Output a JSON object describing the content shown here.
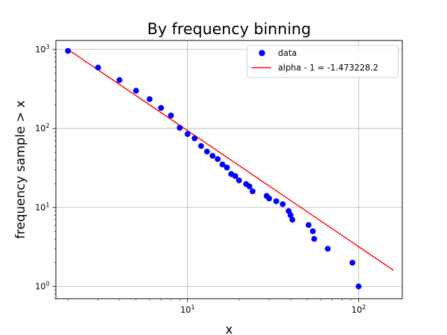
{
  "chart_data": {
    "type": "scatter",
    "title": "By frequency binning",
    "xlabel": "x",
    "ylabel": "frequency sample > x",
    "xscale": "log",
    "yscale": "log",
    "xlim": [
      1.7,
      180
    ],
    "ylim": [
      0.7,
      1300
    ],
    "grid": true,
    "legend_position": "top-right",
    "x_ticks": [
      {
        "value": 10,
        "base": "10",
        "exp": "1"
      },
      {
        "value": 100,
        "base": "10",
        "exp": "2"
      }
    ],
    "y_ticks": [
      {
        "value": 1,
        "base": "10",
        "exp": "0"
      },
      {
        "value": 10,
        "base": "10",
        "exp": "1"
      },
      {
        "value": 100,
        "base": "10",
        "exp": "2"
      },
      {
        "value": 1000,
        "base": "10",
        "exp": "3"
      }
    ],
    "series": [
      {
        "name": "data",
        "kind": "scatter",
        "color": "#0000ff",
        "points": [
          [
            2,
            960
          ],
          [
            3,
            590
          ],
          [
            4,
            410
          ],
          [
            5,
            300
          ],
          [
            6,
            235
          ],
          [
            7,
            182
          ],
          [
            8,
            146
          ],
          [
            9,
            102
          ],
          [
            10,
            85
          ],
          [
            11,
            75
          ],
          [
            12,
            60
          ],
          [
            13,
            51
          ],
          [
            14,
            45
          ],
          [
            15,
            41
          ],
          [
            16,
            35
          ],
          [
            17,
            32
          ],
          [
            18,
            26.5
          ],
          [
            19,
            25
          ],
          [
            20,
            22
          ],
          [
            22,
            19.8
          ],
          [
            23,
            18.5
          ],
          [
            24,
            16
          ],
          [
            29,
            14
          ],
          [
            30,
            13
          ],
          [
            33,
            12
          ],
          [
            36,
            11
          ],
          [
            39,
            9
          ],
          [
            40,
            8
          ],
          [
            41,
            7
          ],
          [
            51,
            6
          ],
          [
            54,
            5
          ],
          [
            55,
            4
          ],
          [
            66,
            3
          ],
          [
            92,
            2
          ],
          [
            100,
            1
          ]
        ]
      },
      {
        "name": "alpha - 1 = -1.473228.2",
        "kind": "line",
        "color": "#ff0000",
        "points": [
          [
            2,
            1000
          ],
          [
            160,
            1.6
          ]
        ]
      }
    ]
  }
}
